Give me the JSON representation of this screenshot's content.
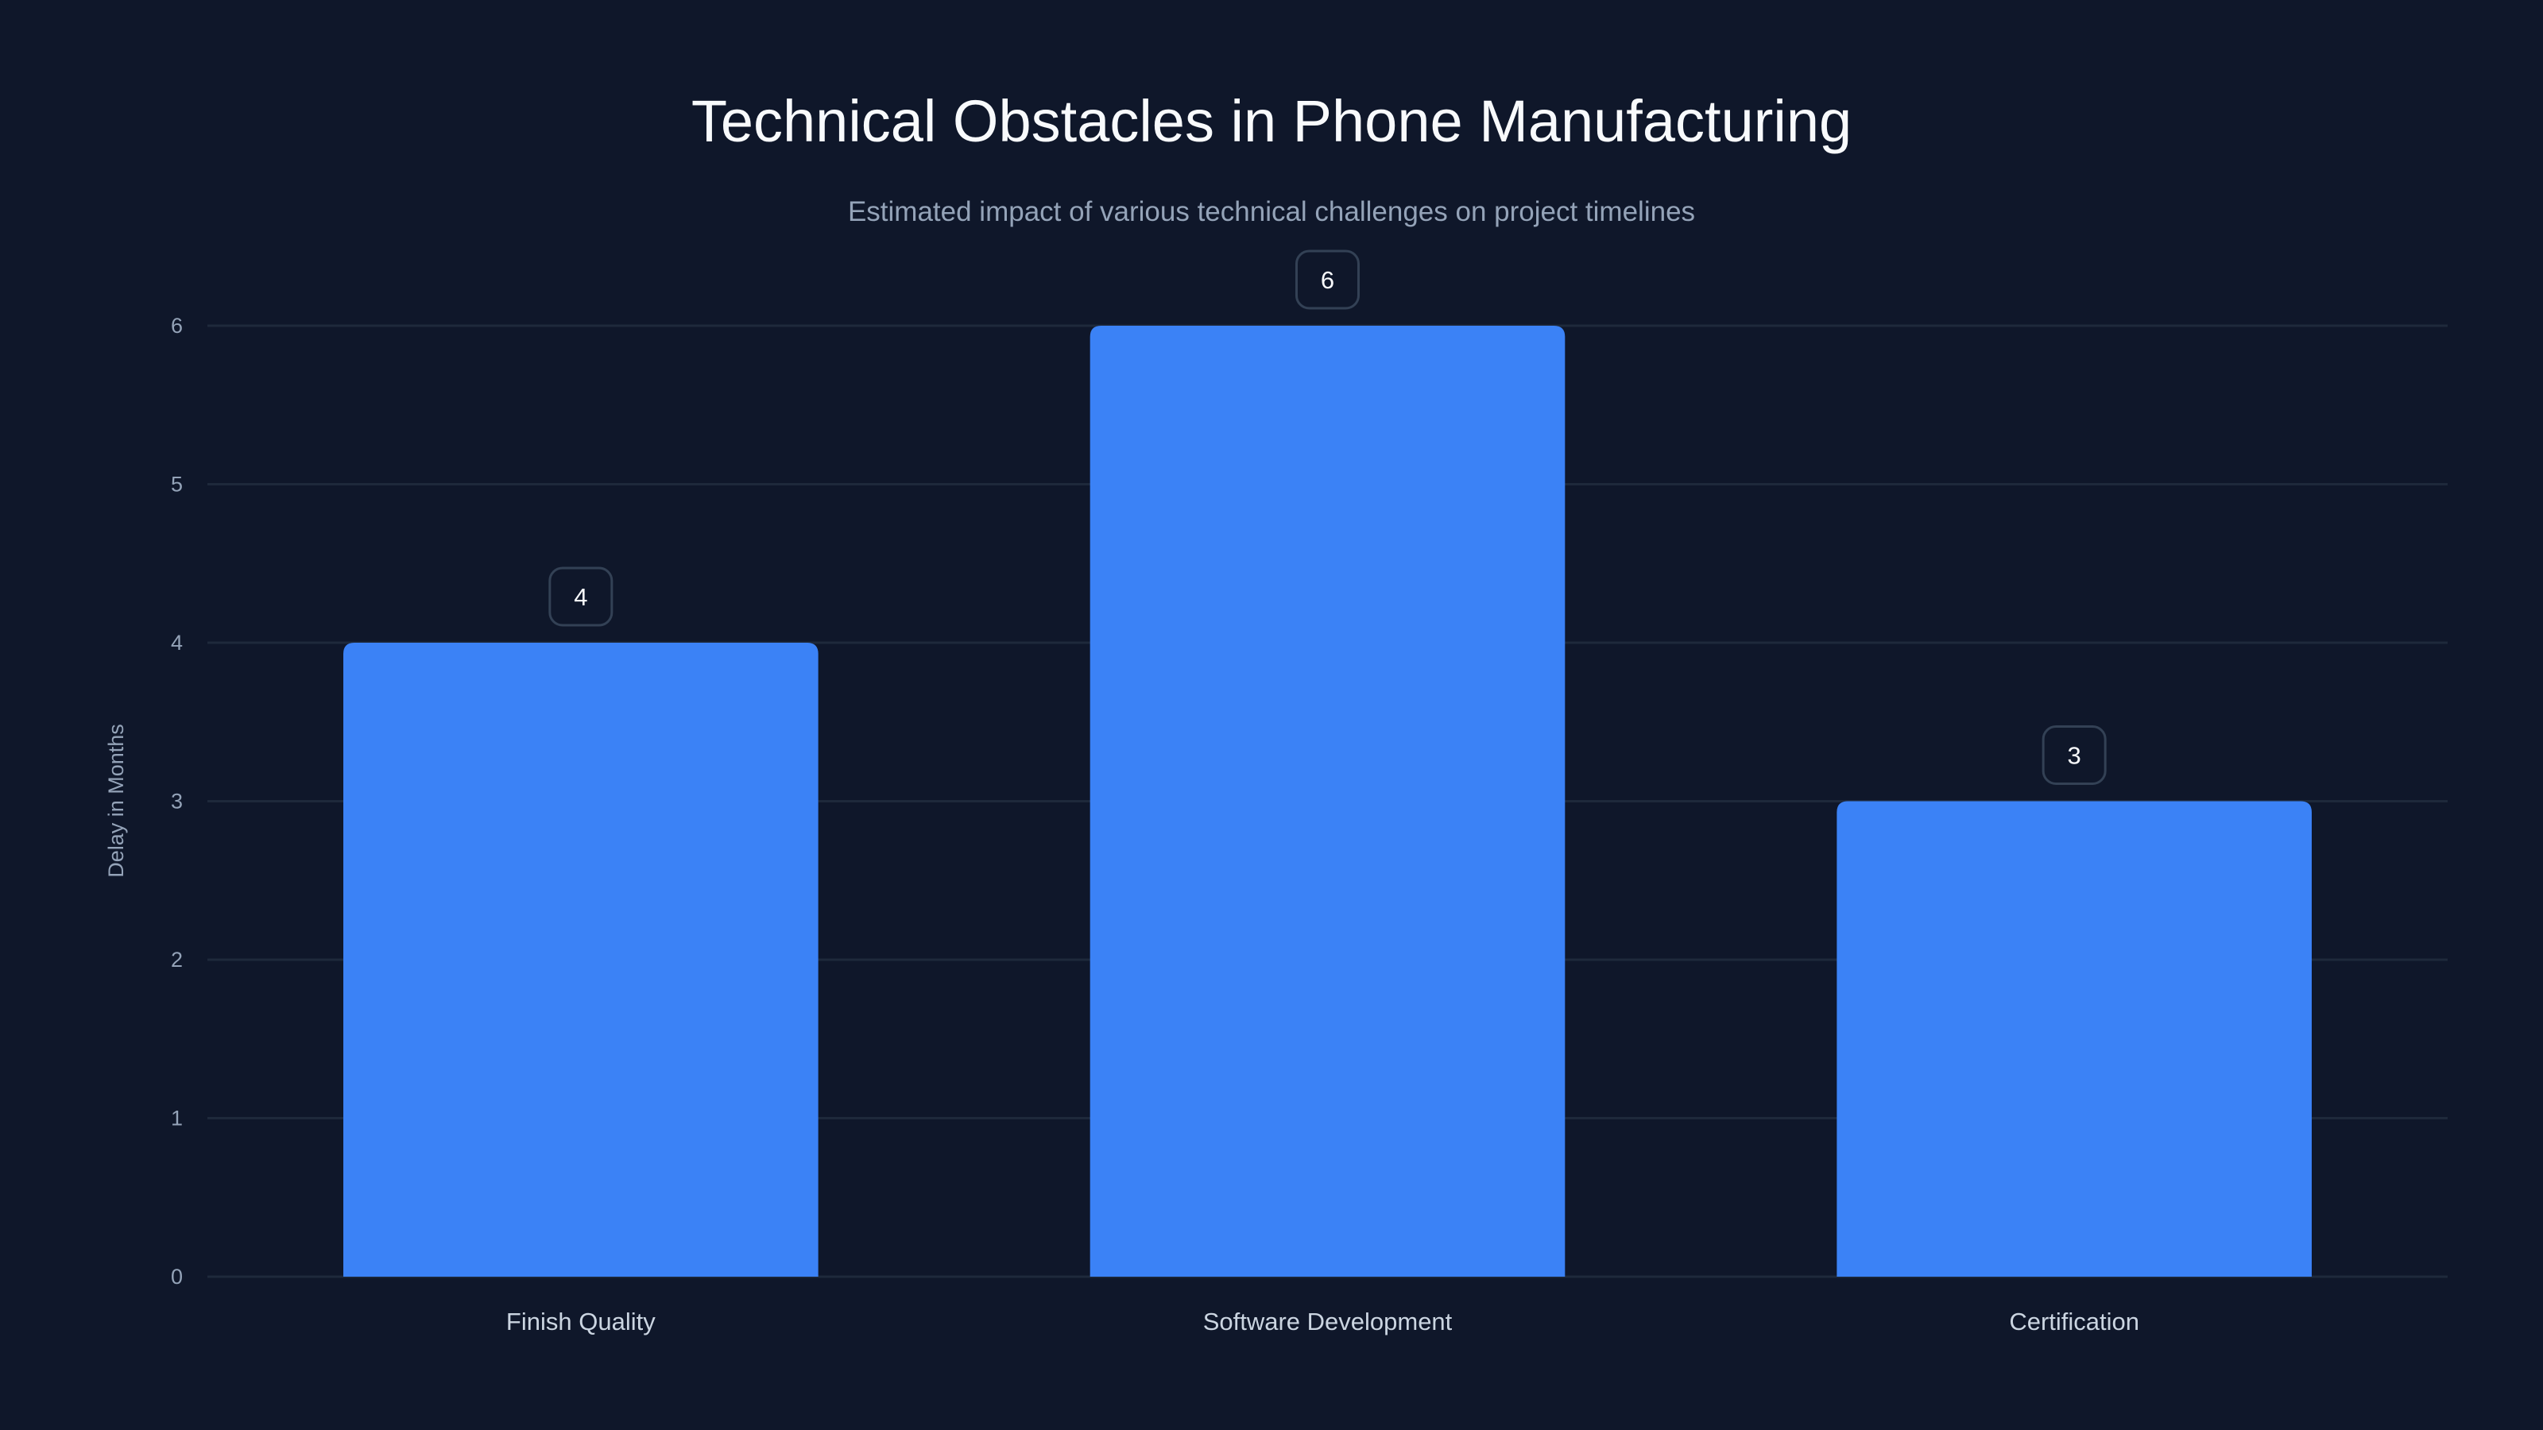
{
  "chart_data": {
    "type": "bar",
    "title": "Technical Obstacles in Phone Manufacturing",
    "subtitle": "Estimated impact of various technical challenges on project timelines",
    "categories": [
      "Finish Quality",
      "Software Development",
      "Certification"
    ],
    "values": [
      4,
      6,
      3
    ],
    "data_labels": [
      "4",
      "6",
      "3"
    ],
    "xlabel": "",
    "ylabel": "Delay in Months",
    "ylim": [
      0,
      6
    ],
    "yticks": [
      "0",
      "1",
      "2",
      "3",
      "4",
      "5",
      "6"
    ],
    "grid": true,
    "colors": {
      "background": "#0f172a",
      "bar": "#3b82f6",
      "grid": "#1e293b",
      "label_border": "#334155"
    }
  }
}
